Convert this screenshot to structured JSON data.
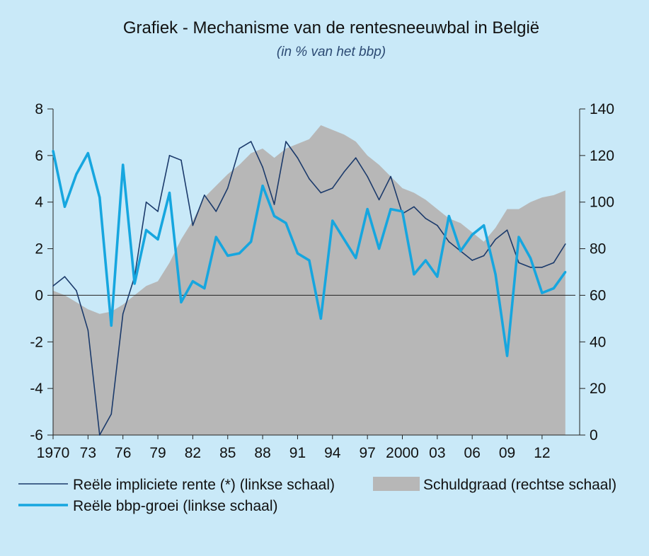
{
  "chart_data": {
    "type": "line",
    "title": "Grafiek - Mechanisme van de rentesneeuwbal in België",
    "subtitle": "(in % van het bbp)",
    "years": [
      1970,
      1971,
      1972,
      1973,
      1974,
      1975,
      1976,
      1977,
      1978,
      1979,
      1980,
      1981,
      1982,
      1983,
      1984,
      1985,
      1986,
      1987,
      1988,
      1989,
      1990,
      1991,
      1992,
      1993,
      1994,
      1995,
      1996,
      1997,
      1998,
      1999,
      2000,
      2001,
      2002,
      2003,
      2004,
      2005,
      2006,
      2007,
      2008,
      2009,
      2010,
      2011,
      2012,
      2013,
      2014
    ],
    "x_tick_labels": [
      "1970",
      "73",
      "76",
      "79",
      "82",
      "85",
      "88",
      "91",
      "94",
      "97",
      "2000",
      "03",
      "06",
      "09",
      "12"
    ],
    "y_left": {
      "ticks": [
        "-6",
        "-4",
        "-2",
        "0",
        "2",
        "4",
        "6",
        "8"
      ],
      "ylim": [
        -6,
        8
      ]
    },
    "y_right": {
      "ticks": [
        "0",
        "20",
        "40",
        "60",
        "80",
        "100",
        "120",
        "140"
      ],
      "ylim": [
        0,
        140
      ]
    },
    "series": [
      {
        "name": "Reële impliciete rente (*) (linkse schaal)",
        "axis": "left",
        "style": "thin-line",
        "color": "#1b3a6b",
        "values": [
          0.4,
          0.8,
          0.2,
          -1.5,
          -6.0,
          -5.1,
          -0.8,
          0.8,
          4.0,
          3.6,
          6.0,
          5.8,
          3.0,
          4.3,
          3.6,
          4.6,
          6.3,
          6.6,
          5.5,
          3.9,
          6.6,
          5.9,
          5.0,
          4.4,
          4.6,
          5.3,
          5.9,
          5.1,
          4.1,
          5.1,
          3.5,
          3.8,
          3.3,
          3.0,
          2.3,
          1.9,
          1.5,
          1.7,
          2.4,
          2.8,
          1.4,
          1.2,
          1.2,
          1.4,
          2.2
        ]
      },
      {
        "name": "Schuldgraad (rechtse schaal)",
        "axis": "right",
        "style": "area",
        "color": "#b7b7b7",
        "values": [
          62,
          60,
          57,
          54,
          52,
          53,
          56,
          60,
          64,
          66,
          74,
          84,
          92,
          102,
          107,
          112,
          116,
          121,
          123,
          119,
          123,
          125,
          127,
          133,
          131,
          129,
          126,
          120,
          116,
          111,
          106,
          104,
          101,
          97,
          93,
          91,
          87,
          83,
          89,
          97,
          97,
          100,
          102,
          103,
          105
        ]
      },
      {
        "name": "Reële bbp-groei (linkse schaal)",
        "axis": "left",
        "style": "thick-line",
        "color": "#16a6df",
        "values": [
          6.2,
          3.8,
          5.2,
          6.1,
          4.2,
          -1.3,
          5.6,
          0.5,
          2.8,
          2.4,
          4.4,
          -0.3,
          0.6,
          0.3,
          2.5,
          1.7,
          1.8,
          2.3,
          4.7,
          3.4,
          3.1,
          1.8,
          1.5,
          -1.0,
          3.2,
          2.4,
          1.6,
          3.7,
          2.0,
          3.7,
          3.6,
          0.9,
          1.5,
          0.8,
          3.4,
          1.9,
          2.6,
          3.0,
          0.9,
          -2.6,
          2.5,
          1.6,
          0.1,
          0.3,
          1.0
        ]
      }
    ],
    "legend": {
      "items": [
        "Reële impliciete rente (*) (linkse schaal)",
        "Schuldgraad (rechtse schaal)",
        "Reële bbp-groei (linkse schaal)"
      ],
      "placement": "bottom"
    },
    "grid": false
  }
}
